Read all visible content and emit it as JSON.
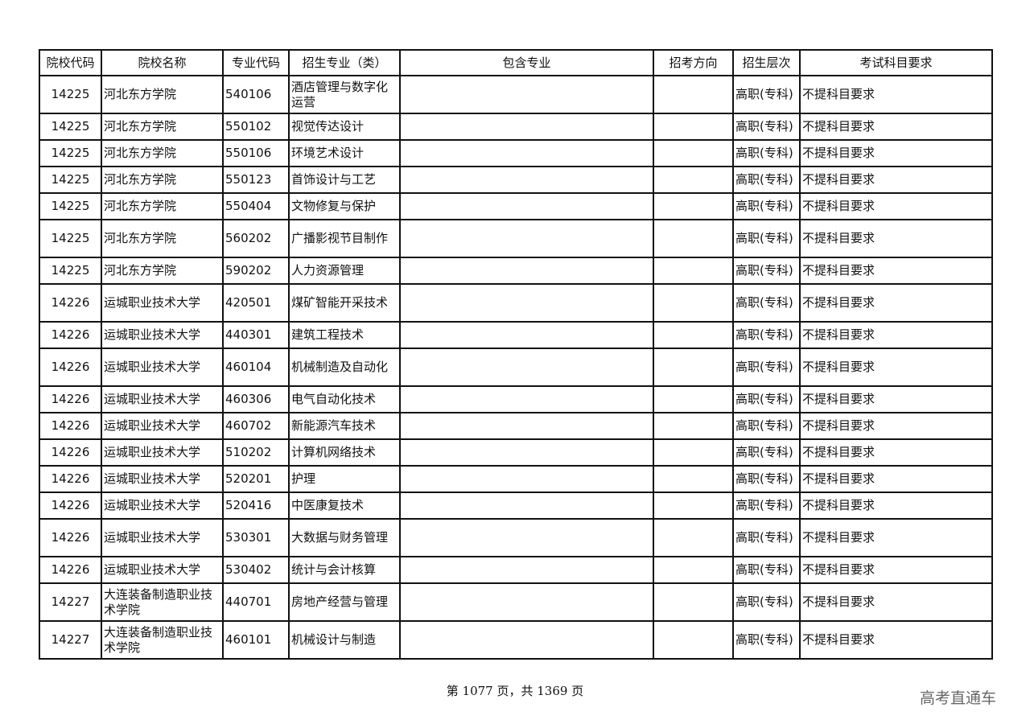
{
  "table": {
    "headers": [
      "院校代码",
      "院校名称",
      "专业代码",
      "招生专业（类）",
      "包含专业",
      "招考方向",
      "招生层次",
      "考试科目要求"
    ],
    "rows": [
      [
        "14225",
        "河北东方学院",
        "540106",
        "酒店管理与数字化运营",
        "",
        "",
        "高职(专科)",
        "不提科目要求"
      ],
      [
        "14225",
        "河北东方学院",
        "550102",
        "视觉传达设计",
        "",
        "",
        "高职(专科)",
        "不提科目要求"
      ],
      [
        "14225",
        "河北东方学院",
        "550106",
        "环境艺术设计",
        "",
        "",
        "高职(专科)",
        "不提科目要求"
      ],
      [
        "14225",
        "河北东方学院",
        "550123",
        "首饰设计与工艺",
        "",
        "",
        "高职(专科)",
        "不提科目要求"
      ],
      [
        "14225",
        "河北东方学院",
        "550404",
        "文物修复与保护",
        "",
        "",
        "高职(专科)",
        "不提科目要求"
      ],
      [
        "14225",
        "河北东方学院",
        "560202",
        "广播影视节目制作",
        "",
        "",
        "高职(专科)",
        "不提科目要求"
      ],
      [
        "14225",
        "河北东方学院",
        "590202",
        "人力资源管理",
        "",
        "",
        "高职(专科)",
        "不提科目要求"
      ],
      [
        "14226",
        "运城职业技术大学",
        "420501",
        "煤矿智能开采技术",
        "",
        "",
        "高职(专科)",
        "不提科目要求"
      ],
      [
        "14226",
        "运城职业技术大学",
        "440301",
        "建筑工程技术",
        "",
        "",
        "高职(专科)",
        "不提科目要求"
      ],
      [
        "14226",
        "运城职业技术大学",
        "460104",
        "机械制造及自动化",
        "",
        "",
        "高职(专科)",
        "不提科目要求"
      ],
      [
        "14226",
        "运城职业技术大学",
        "460306",
        "电气自动化技术",
        "",
        "",
        "高职(专科)",
        "不提科目要求"
      ],
      [
        "14226",
        "运城职业技术大学",
        "460702",
        "新能源汽车技术",
        "",
        "",
        "高职(专科)",
        "不提科目要求"
      ],
      [
        "14226",
        "运城职业技术大学",
        "510202",
        "计算机网络技术",
        "",
        "",
        "高职(专科)",
        "不提科目要求"
      ],
      [
        "14226",
        "运城职业技术大学",
        "520201",
        "护理",
        "",
        "",
        "高职(专科)",
        "不提科目要求"
      ],
      [
        "14226",
        "运城职业技术大学",
        "520416",
        "中医康复技术",
        "",
        "",
        "高职(专科)",
        "不提科目要求"
      ],
      [
        "14226",
        "运城职业技术大学",
        "530301",
        "大数据与财务管理",
        "",
        "",
        "高职(专科)",
        "不提科目要求"
      ],
      [
        "14226",
        "运城职业技术大学",
        "530402",
        "统计与会计核算",
        "",
        "",
        "高职(专科)",
        "不提科目要求"
      ],
      [
        "14227",
        "大连装备制造职业技术学院",
        "440701",
        "房地产经营与管理",
        "",
        "",
        "高职(专科)",
        "不提科目要求"
      ],
      [
        "14227",
        "大连装备制造职业技术学院",
        "460101",
        "机械设计与制造",
        "",
        "",
        "高职(专科)",
        "不提科目要求"
      ]
    ]
  },
  "footer": {
    "page_text": "第 1077 页，共 1369 页"
  },
  "watermark": "高考直通车"
}
